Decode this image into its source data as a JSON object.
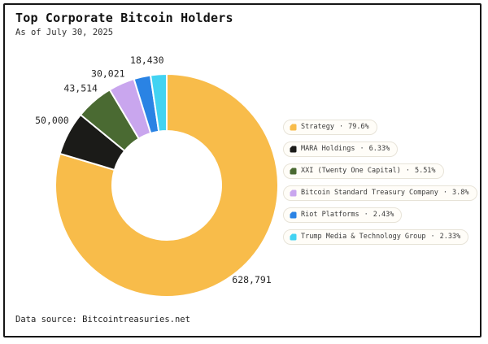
{
  "footer": {
    "source": "Data source: Bitcointreasuries.net"
  },
  "legend": {
    "separator": "·"
  },
  "chart_data": {
    "type": "pie",
    "subtype": "donut",
    "title": "Top Corporate Bitcoin Holders",
    "subtitle": "As of July 30, 2025",
    "legend_position": "right",
    "direction": "clockwise",
    "start_angle": "top",
    "slices": [
      {
        "name": "Strategy",
        "percent": 79.6,
        "percent_label": "79.6%",
        "value_label": "628,791",
        "color": "#F8BC4A"
      },
      {
        "name": "MARA Holdings",
        "percent": 6.33,
        "percent_label": "6.33%",
        "value_label": "50,000",
        "color": "#1B1B18"
      },
      {
        "name": "XXI (Twenty One Capital)",
        "percent": 5.51,
        "percent_label": "5.51%",
        "value_label": "43,514",
        "color": "#4A6A32"
      },
      {
        "name": "Bitcoin Standard Treasury Company",
        "percent": 3.8,
        "percent_label": "3.8%",
        "value_label": "30,021",
        "color": "#C9A6EE"
      },
      {
        "name": "Riot Platforms",
        "percent": 2.43,
        "percent_label": "2.43%",
        "value_label": "",
        "color": "#2A83E4"
      },
      {
        "name": "Trump Media & Technology Group",
        "percent": 2.33,
        "percent_label": "2.33%",
        "value_label": "18,430",
        "color": "#42D3F2"
      }
    ]
  }
}
